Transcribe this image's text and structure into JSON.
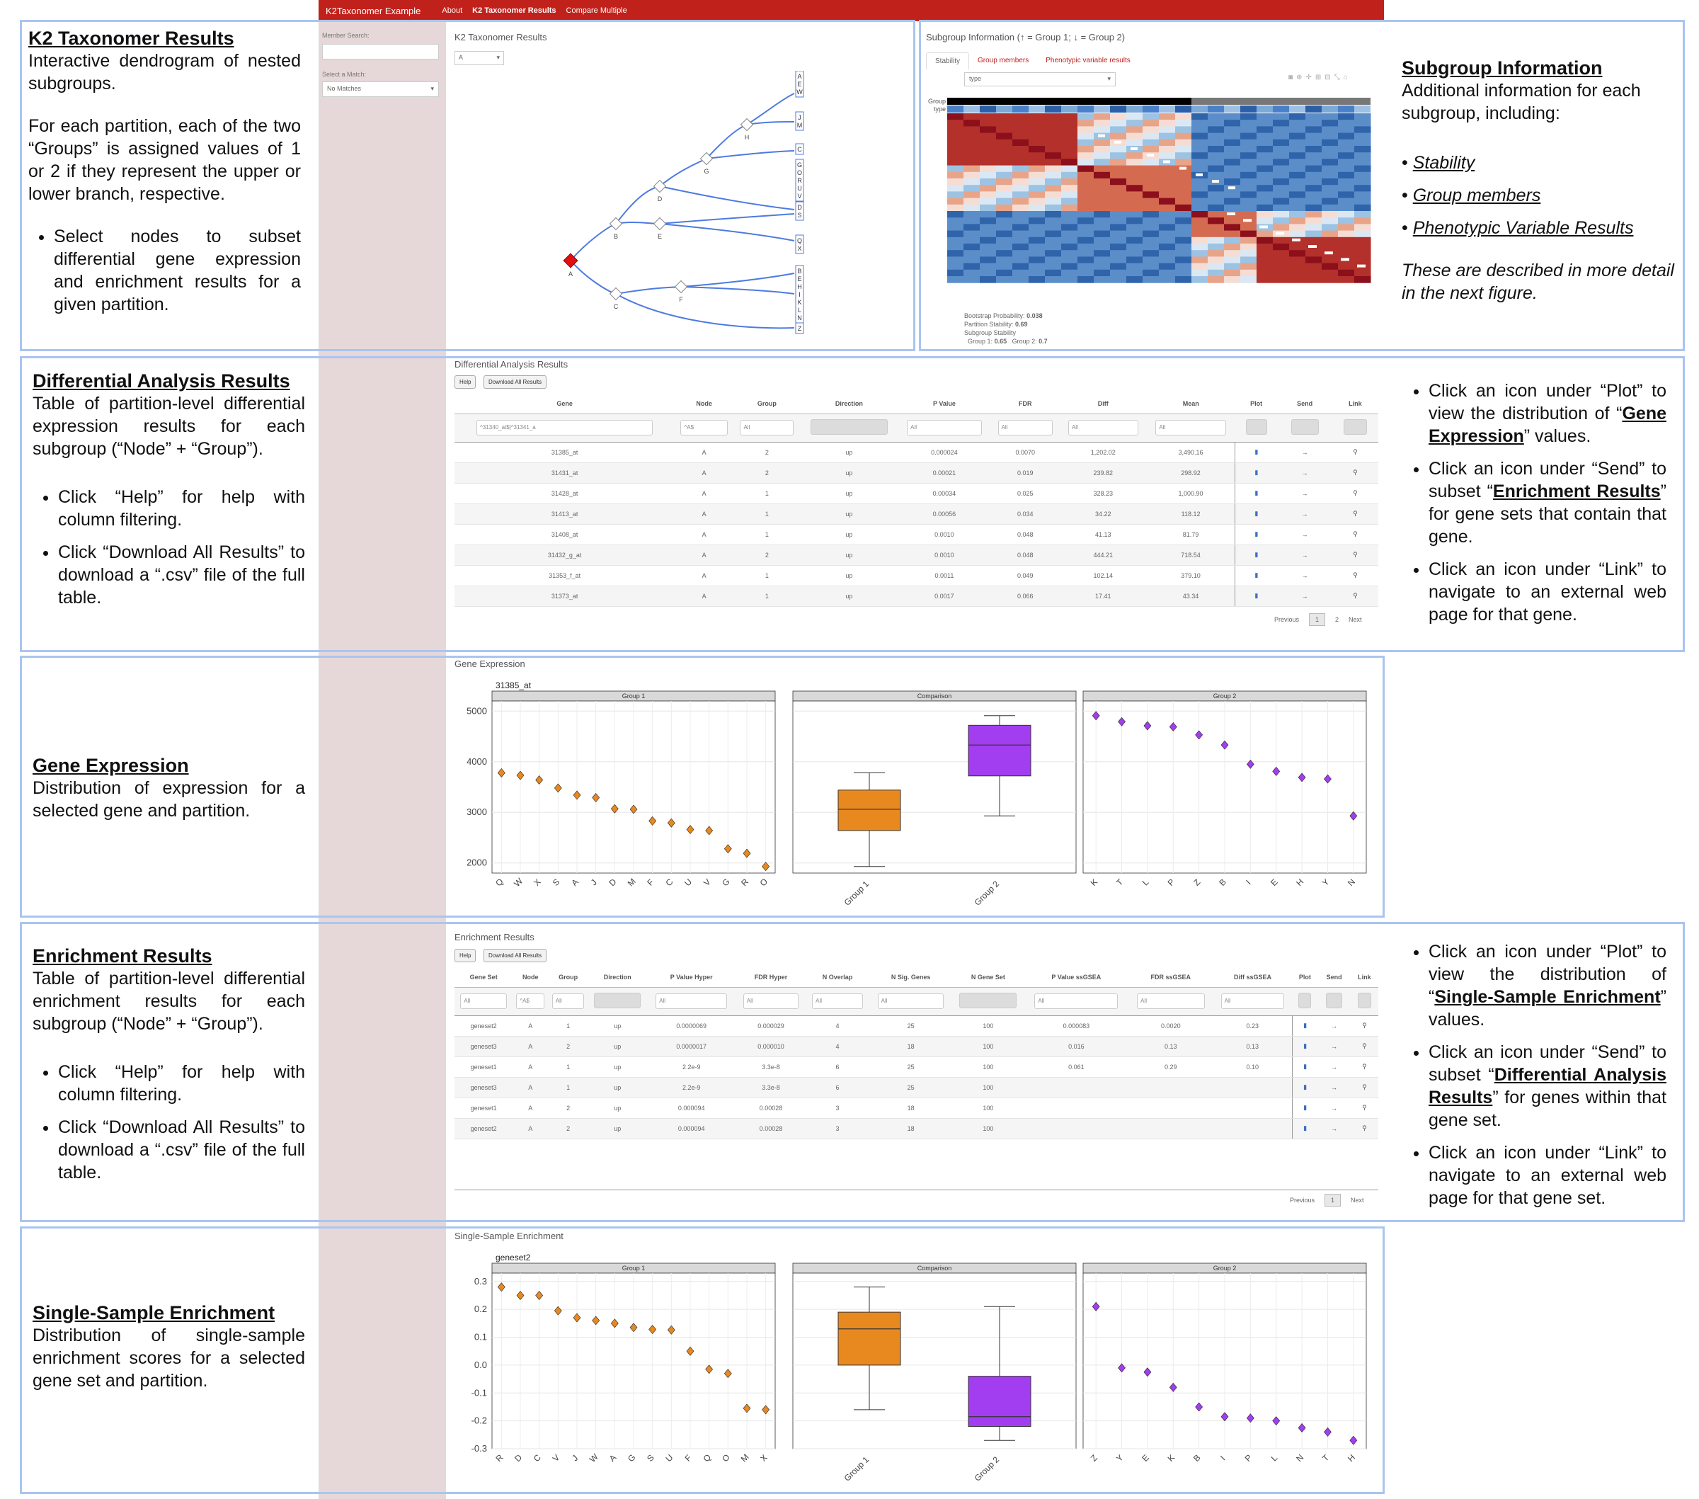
{
  "app": {
    "brand": "K2Taxonomer Example",
    "nav": [
      "About",
      "K2 Taxonomer Results",
      "Compare Multiple"
    ]
  },
  "sidebar": {
    "member_search_label": "Member Search:",
    "select_match_label": "Select a Match:",
    "select_match_value": "No Matches"
  },
  "annotations": {
    "k2": {
      "title": "K2 Taxonomer Results",
      "desc": "Interactive dendrogram of nested subgroups.",
      "para": "For each partition, each of the two “Groups” is assigned values of 1 or 2 if they represent the upper or lower branch, respective.",
      "bullet1": "Select nodes to subset differential gene expression and enrichment results for a given partition."
    },
    "subgroup": {
      "title": "Subgroup Information",
      "desc": "Additional information for each subgroup, including:",
      "items": [
        "Stability",
        "Group members",
        "Phenotypic Variable Results"
      ],
      "note": "These are described in more detail in the next figure."
    },
    "diff": {
      "title": "Differential Analysis Results",
      "desc": "Table of partition-level differential expression results for each subgroup (“Node” + “Group”).",
      "b1": "Click “Help” for help with column filtering.",
      "b2": "Click “Download All Results” to download a “.csv” file of the full table.",
      "r1a": "Click an icon under “Plot” to view the distribution of “",
      "r1b": "Gene Expression",
      "r1c": "” values.",
      "r2a": "Click an icon under “Send” to subset “",
      "r2b": "Enrichment Results",
      "r2c": "” for gene sets that contain that gene.",
      "r3": "Click an icon under “Link” to navigate to an external web page for that gene."
    },
    "gene_expr": {
      "title": "Gene Expression",
      "desc": "Distribution of expression for a selected gene and partition."
    },
    "enrich": {
      "title": "Enrichment Results",
      "desc": "Table of partition-level differential enrichment results for each subgroup (“Node” + “Group”).",
      "b1": "Click “Help” for help with column filtering.",
      "b2": "Click “Download All Results” to download a “.csv” file of the full table.",
      "r1a": "Click an icon under “Plot” to view the distribution of “",
      "r1b": "Single-Sample Enrichment",
      "r1c": "” values.",
      "r2a": "Click an icon under “Send” to subset “",
      "r2b": "Differential Analysis Results",
      "r2c": "” for genes within that gene set.",
      "r3": "Click an icon under “Link” to navigate to an external web page for that gene set."
    },
    "ssenrich": {
      "title": "Single-Sample Enrichment",
      "desc": "Distribution of single-sample enrichment scores for a selected gene set and partition."
    }
  },
  "k2panel": {
    "title": "K2 Taxonomer Results",
    "select_value": "A",
    "nodes": [
      "A",
      "B",
      "C",
      "D",
      "E",
      "F",
      "G",
      "H"
    ],
    "leaves": [
      "A E W",
      "J M",
      "C",
      "G O R U V",
      "D S",
      "Q X",
      "B E H I K L N T",
      "Z"
    ]
  },
  "subgroup_panel": {
    "title": "Subgroup Information (↑ = Group 1; ↓ = Group 2)",
    "tabs": [
      "Stability",
      "Group members",
      "Phenotypic variable results"
    ],
    "select_value": "type",
    "row_labels": [
      "Group",
      "type"
    ],
    "stats": {
      "bootstrap_label": "Bootstrap Probability:",
      "bootstrap_value": "0.038",
      "partition_label": "Partition Stability:",
      "partition_value": "0.69",
      "subgroup_label": "Subgroup Stability",
      "g1_label": "Group 1:",
      "g1_value": "0.65",
      "g2_label": "Group 2:",
      "g2_value": "0.7"
    }
  },
  "diff_table": {
    "title": "Differential Analysis Results",
    "help": "Help",
    "download": "Download All Results",
    "columns": [
      "Gene",
      "Node",
      "Group",
      "Direction",
      "P Value",
      "FDR",
      "Diff",
      "Mean",
      "Plot",
      "Send",
      "Link"
    ],
    "filters": [
      "^31340_at$|^31341_a",
      "^A$",
      "All",
      "",
      "All",
      "All",
      "All",
      "All"
    ],
    "rows": [
      [
        "31385_at",
        "A",
        "2",
        "up",
        "0.000024",
        "0.0070",
        "1,202.02",
        "3,490.16"
      ],
      [
        "31431_at",
        "A",
        "2",
        "up",
        "0.00021",
        "0.019",
        "239.82",
        "298.92"
      ],
      [
        "31428_at",
        "A",
        "1",
        "up",
        "0.00034",
        "0.025",
        "328.23",
        "1,000.90"
      ],
      [
        "31413_at",
        "A",
        "1",
        "up",
        "0.00056",
        "0.034",
        "34.22",
        "118.12"
      ],
      [
        "31408_at",
        "A",
        "1",
        "up",
        "0.0010",
        "0.048",
        "41.13",
        "81.79"
      ],
      [
        "31432_g_at",
        "A",
        "2",
        "up",
        "0.0010",
        "0.048",
        "444.21",
        "718.54"
      ],
      [
        "31353_f_at",
        "A",
        "1",
        "up",
        "0.0011",
        "0.049",
        "102.14",
        "379.10"
      ],
      [
        "31373_at",
        "A",
        "1",
        "up",
        "0.0017",
        "0.066",
        "17.41",
        "43.34"
      ]
    ],
    "pager": [
      "Previous",
      "1",
      "2",
      "Next"
    ]
  },
  "enrich_table": {
    "title": "Enrichment Results",
    "help": "Help",
    "download": "Download All Results",
    "columns": [
      "Gene Set",
      "Node",
      "Group",
      "Direction",
      "P Value Hyper",
      "FDR Hyper",
      "N Overlap",
      "N Sig. Genes",
      "N Gene Set",
      "P Value ssGSEA",
      "FDR ssGSEA",
      "Diff ssGSEA",
      "Plot",
      "Send",
      "Link"
    ],
    "filters": [
      "All",
      "^A$",
      "All",
      "",
      "All",
      "All",
      "All",
      "All",
      "",
      "All",
      "All",
      "All"
    ],
    "rows": [
      [
        "geneset2",
        "A",
        "1",
        "up",
        "0.0000069",
        "0.000029",
        "4",
        "25",
        "100",
        "0.000083",
        "0.0020",
        "0.23"
      ],
      [
        "geneset3",
        "A",
        "2",
        "up",
        "0.0000017",
        "0.000010",
        "4",
        "18",
        "100",
        "0.016",
        "0.13",
        "0.13"
      ],
      [
        "geneset1",
        "A",
        "1",
        "up",
        "2.2e-9",
        "3.3e-8",
        "6",
        "25",
        "100",
        "0.061",
        "0.29",
        "0.10"
      ],
      [
        "geneset3",
        "A",
        "1",
        "up",
        "2.2e-9",
        "3.3e-8",
        "6",
        "25",
        "100",
        "",
        "",
        ""
      ],
      [
        "geneset1",
        "A",
        "2",
        "up",
        "0.000094",
        "0.00028",
        "3",
        "18",
        "100",
        "",
        "",
        ""
      ],
      [
        "geneset2",
        "A",
        "2",
        "up",
        "0.000094",
        "0.00028",
        "3",
        "18",
        "100",
        "",
        "",
        ""
      ]
    ],
    "pager": [
      "Previous",
      "1",
      "Next"
    ]
  },
  "chart_data": [
    {
      "type": "scatter",
      "title": "Gene Expression",
      "subtitle": "31385_at",
      "facets": [
        "Group 1",
        "Comparison",
        "Group 2"
      ],
      "ylim": [
        1800,
        5200
      ],
      "yticks": [
        2000,
        3000,
        4000,
        5000
      ],
      "group1": {
        "x": [
          "Q",
          "W",
          "X",
          "S",
          "A",
          "J",
          "D",
          "M",
          "F",
          "C",
          "U",
          "V",
          "G",
          "R",
          "O"
        ],
        "y": [
          3780,
          3730,
          3640,
          3480,
          3340,
          3290,
          3070,
          3060,
          2830,
          2790,
          2660,
          2640,
          2280,
          2190,
          1930
        ]
      },
      "group2": {
        "x": [
          "K",
          "T",
          "L",
          "P",
          "Z",
          "B",
          "I",
          "E",
          "H",
          "Y",
          "N"
        ],
        "y": [
          4910,
          4790,
          4710,
          4690,
          4530,
          4330,
          3950,
          3810,
          3690,
          3660,
          2930
        ]
      },
      "boxes": [
        {
          "name": "Group 1",
          "min": 1930,
          "q1": 2640,
          "median": 3060,
          "q3": 3440,
          "max": 3780,
          "color": "#e8891f"
        },
        {
          "name": "Group 2",
          "min": 2930,
          "q1": 3720,
          "median": 4330,
          "q3": 4720,
          "max": 4910,
          "color": "#a23df0"
        }
      ]
    },
    {
      "type": "scatter",
      "title": "Single-Sample Enrichment",
      "subtitle": "geneset2",
      "facets": [
        "Group 1",
        "Comparison",
        "Group 2"
      ],
      "ylim": [
        -0.3,
        0.33
      ],
      "yticks": [
        0.3,
        0.2,
        0.1,
        0.0,
        -0.1,
        -0.2,
        -0.3
      ],
      "ytick_labels": [
        "0.3",
        "0.2",
        "0.1",
        "0.0",
        "-0.1",
        "-0.2",
        "-0.3"
      ],
      "group1": {
        "x": [
          "R",
          "D",
          "C",
          "V",
          "J",
          "W",
          "A",
          "G",
          "S",
          "U",
          "F",
          "Q",
          "O",
          "M",
          "X"
        ],
        "y": [
          0.28,
          0.25,
          0.25,
          0.195,
          0.17,
          0.16,
          0.15,
          0.135,
          0.128,
          0.126,
          0.05,
          -0.015,
          -0.03,
          -0.155,
          -0.16
        ]
      },
      "group2": {
        "x": [
          "Z",
          "Y",
          "E",
          "K",
          "B",
          "I",
          "P",
          "L",
          "N",
          "T",
          "H"
        ],
        "y": [
          0.21,
          -0.01,
          -0.025,
          -0.08,
          -0.15,
          -0.185,
          -0.19,
          -0.2,
          -0.225,
          -0.24,
          -0.27
        ]
      },
      "boxes": [
        {
          "name": "Group 1",
          "min": -0.16,
          "q1": 0.0,
          "median": 0.13,
          "q3": 0.19,
          "max": 0.28,
          "color": "#e8891f"
        },
        {
          "name": "Group 2",
          "min": -0.27,
          "q1": -0.22,
          "median": -0.185,
          "q3": -0.04,
          "max": 0.21,
          "color": "#a23df0"
        }
      ]
    }
  ]
}
